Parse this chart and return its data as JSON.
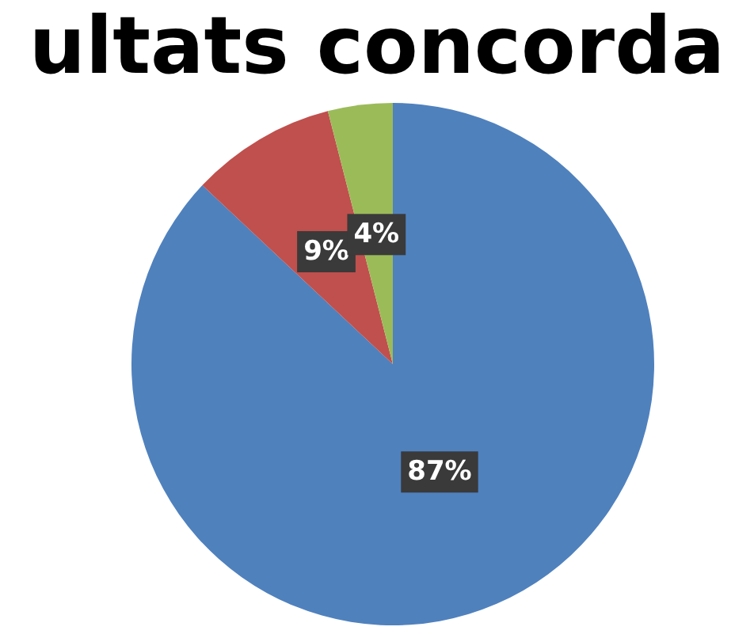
{
  "chart_data": {
    "type": "pie",
    "title": "ultats concorda",
    "categories": [
      null,
      null,
      null
    ],
    "values": [
      87,
      9,
      4
    ],
    "colors": [
      "#4f81bd",
      "#c0504d",
      "#9bbb59"
    ],
    "value_labels": [
      "87%",
      "9%",
      "4%"
    ]
  }
}
